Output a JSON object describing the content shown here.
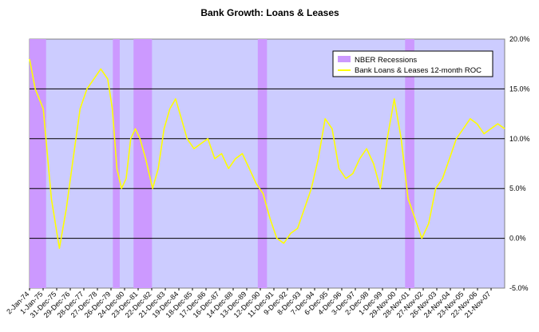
{
  "chart_data": {
    "type": "line",
    "title": "Bank Growth: Loans & Leases",
    "xlabel": "",
    "ylabel": "",
    "ylim": [
      -0.05,
      0.2
    ],
    "y_ticks": [
      -0.05,
      0.0,
      0.05,
      0.1,
      0.15,
      0.2
    ],
    "y_tick_labels": [
      "-5.0%",
      "0.0%",
      "5.0%",
      "10.0%",
      "15.0%",
      "20.0%"
    ],
    "x_range": [
      "1974-01-02",
      "2008-05-31"
    ],
    "x_tick_labels": [
      "2-Jan-74",
      "1-Jan-75",
      "31-Dec-75",
      "29-Dec-76",
      "28-Dec-77",
      "27-Dec-78",
      "26-Dec-79",
      "24-Dec-80",
      "23-Dec-81",
      "22-Dec-82",
      "21-Dec-83",
      "19-Dec-84",
      "18-Dec-85",
      "17-Dec-86",
      "16-Dec-87",
      "14-Dec-88",
      "13-Dec-89",
      "12-Dec-90",
      "11-Dec-91",
      "9-Dec-92",
      "8-Dec-93",
      "7-Dec-94",
      "6-Dec-95",
      "4-Dec-96",
      "3-Dec-97",
      "2-Dec-98",
      "1-Dec-99",
      "29-Nov-00",
      "28-Nov-01",
      "27-Nov-02",
      "26-Nov-03",
      "24-Nov-04",
      "23-Nov-05",
      "22-Nov-06",
      "21-Nov-07"
    ],
    "grid": "horizontal",
    "legend_position": "top-right",
    "series": [
      {
        "name": "NBER Recessions",
        "type": "shaded-band",
        "color": "#cc99ff",
        "periods": [
          [
            "1974-01-02",
            "1975-03-15"
          ],
          [
            "1980-01-15",
            "1980-07-15"
          ],
          [
            "1981-07-15",
            "1982-11-15"
          ],
          [
            "1990-07-15",
            "1991-03-15"
          ],
          [
            "2001-03-15",
            "2001-11-15"
          ]
        ]
      },
      {
        "name": "Bank Loans & Leases 12-month ROC",
        "type": "line",
        "color": "#ffff00",
        "x": [
          "1974-01-02",
          "1974-06-01",
          "1975-01-01",
          "1975-08-01",
          "1976-03-01",
          "1976-09-01",
          "1977-03-01",
          "1977-09-01",
          "1978-03-01",
          "1978-09-01",
          "1979-03-01",
          "1979-09-01",
          "1980-01-01",
          "1980-05-01",
          "1980-09-01",
          "1981-01-01",
          "1981-05-01",
          "1981-09-01",
          "1982-01-01",
          "1982-06-01",
          "1982-12-01",
          "1983-05-01",
          "1983-10-01",
          "1984-03-01",
          "1984-08-01",
          "1985-01-01",
          "1985-06-01",
          "1985-12-01",
          "1986-06-01",
          "1986-12-01",
          "1987-06-01",
          "1987-12-01",
          "1988-06-01",
          "1988-12-01",
          "1989-06-01",
          "1989-12-01",
          "1990-06-01",
          "1990-12-01",
          "1991-06-01",
          "1991-12-01",
          "1992-06-01",
          "1992-12-01",
          "1993-06-01",
          "1993-12-01",
          "1994-06-01",
          "1994-12-01",
          "1995-06-01",
          "1995-12-01",
          "1996-06-01",
          "1996-12-01",
          "1997-06-01",
          "1997-12-01",
          "1998-06-01",
          "1998-12-01",
          "1999-06-01",
          "1999-12-01",
          "2000-06-01",
          "2000-12-01",
          "2001-06-01",
          "2001-12-01",
          "2002-06-01",
          "2002-12-01",
          "2003-06-01",
          "2003-12-01",
          "2004-06-01",
          "2004-12-01",
          "2005-06-01",
          "2005-12-01",
          "2006-06-01",
          "2006-12-01",
          "2007-06-01",
          "2007-12-01",
          "2008-05-31"
        ],
        "y": [
          0.18,
          0.15,
          0.13,
          0.04,
          -0.01,
          0.03,
          0.08,
          0.13,
          0.15,
          0.16,
          0.17,
          0.16,
          0.13,
          0.07,
          0.05,
          0.06,
          0.1,
          0.11,
          0.1,
          0.08,
          0.05,
          0.07,
          0.11,
          0.13,
          0.14,
          0.12,
          0.1,
          0.09,
          0.095,
          0.1,
          0.08,
          0.085,
          0.07,
          0.08,
          0.085,
          0.07,
          0.055,
          0.045,
          0.02,
          0.0,
          -0.005,
          0.005,
          0.01,
          0.03,
          0.05,
          0.08,
          0.12,
          0.11,
          0.07,
          0.06,
          0.065,
          0.08,
          0.09,
          0.075,
          0.05,
          0.1,
          0.14,
          0.1,
          0.04,
          0.02,
          0.0,
          0.015,
          0.05,
          0.06,
          0.08,
          0.1,
          0.11,
          0.12,
          0.115,
          0.105,
          0.11,
          0.115,
          0.11
        ]
      }
    ]
  }
}
